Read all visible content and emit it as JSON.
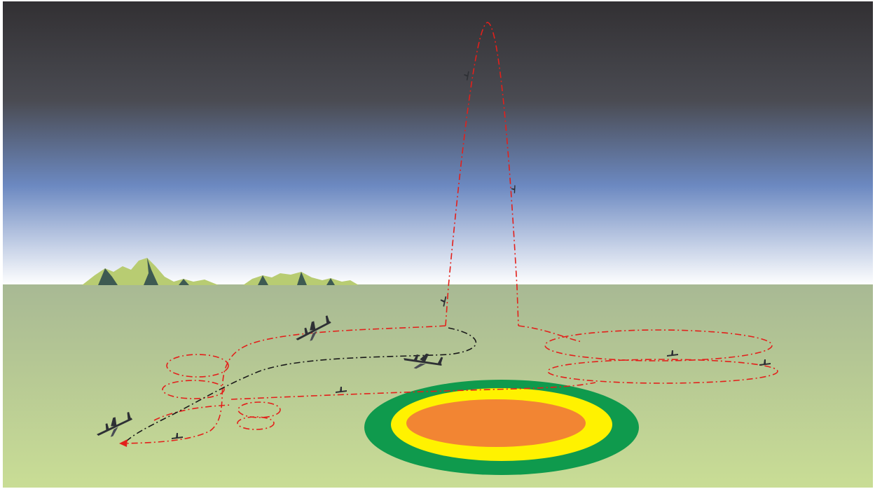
{
  "scene": {
    "colors": {
      "sky_top": "#323033",
      "sky_mid": "#4a4b52",
      "sky_blue": "#6c89c1",
      "horizon": "#ffffff",
      "ground_top": "#a8b994",
      "ground_bottom": "#c9dd95",
      "mountain_light": "#b8cc72",
      "mountain_dark": "#3e5a52",
      "flight_path": "#e3201b",
      "flight_path_secondary": "#1a1a1a",
      "zone_outer": "#0f9a4d",
      "zone_middle": "#fff200",
      "zone_inner": "#f28533",
      "aircraft": "#2e3035"
    },
    "elements": {
      "mountains": "mountain-range",
      "target_zone": "concentric-target-zone",
      "flight_paths": "dash-dot-flight-path",
      "aircraft": "uav-aircraft",
      "arrowhead": "direction-arrow"
    }
  }
}
